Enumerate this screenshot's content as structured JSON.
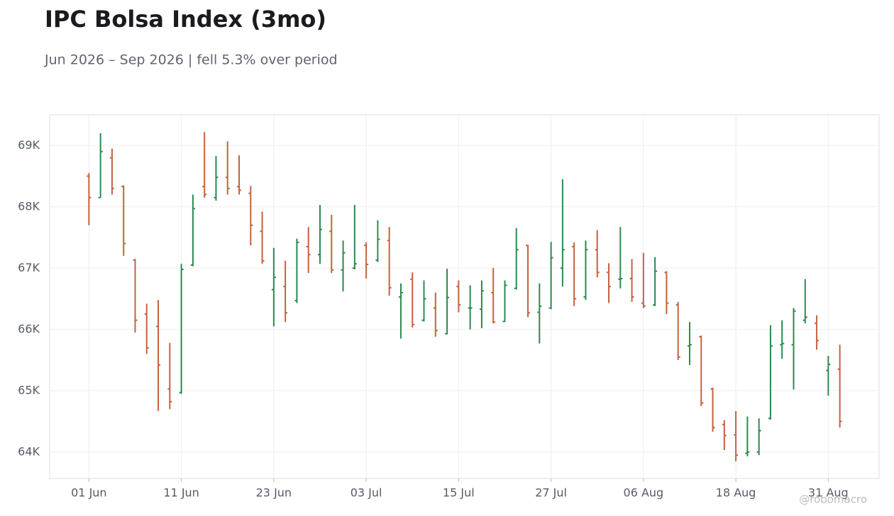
{
  "chart_data": {
    "type": "ohlc",
    "title": "IPC Bolsa Index (3mo)",
    "subtitle": "Jun 2026 – Sep 2026 | fell 5.3% over period",
    "watermark": "@robomacro",
    "categories": [
      "01 Jun",
      null,
      null,
      null,
      null,
      null,
      null,
      null,
      "11 Jun",
      null,
      null,
      null,
      null,
      null,
      null,
      null,
      "23 Jun",
      null,
      null,
      null,
      null,
      null,
      null,
      null,
      "03 Jul",
      null,
      null,
      null,
      null,
      null,
      null,
      null,
      "15 Jul",
      null,
      null,
      null,
      null,
      null,
      null,
      null,
      "27 Jul",
      null,
      null,
      null,
      null,
      null,
      null,
      null,
      "06 Aug",
      null,
      null,
      null,
      null,
      null,
      null,
      null,
      "18 Aug",
      null,
      null,
      null,
      null,
      null,
      null,
      null,
      "31 Aug",
      null
    ],
    "open": [
      68500,
      68150,
      68800,
      68330,
      67130,
      66250,
      66050,
      65030,
      64970,
      67050,
      68330,
      68150,
      68480,
      68330,
      68220,
      67600,
      66650,
      66700,
      66470,
      67350,
      67220,
      67600,
      66970,
      67000,
      67370,
      67130,
      67450,
      66530,
      66820,
      66150,
      66350,
      65930,
      66700,
      66350,
      66330,
      66600,
      66130,
      66670,
      67370,
      66280,
      66350,
      67000,
      67350,
      66530,
      67300,
      66930,
      66820,
      66830,
      66430,
      66400,
      66930,
      66400,
      65730,
      65880,
      65030,
      64450,
      64280,
      63980,
      64000,
      64550,
      65750,
      65750,
      66150,
      66100,
      65330,
      65350
    ],
    "high": [
      68550,
      69200,
      68950,
      68350,
      67150,
      66420,
      66480,
      65780,
      67070,
      68200,
      69220,
      68830,
      69070,
      68840,
      68340,
      67920,
      67330,
      67120,
      67480,
      67670,
      68030,
      67870,
      67450,
      68030,
      67420,
      67780,
      67670,
      66750,
      66930,
      66800,
      66600,
      66990,
      66800,
      66720,
      66800,
      67000,
      66800,
      67650,
      67380,
      66750,
      67430,
      68450,
      67420,
      67450,
      67620,
      67080,
      67670,
      67150,
      67250,
      67180,
      66950,
      66450,
      66120,
      65900,
      65050,
      64520,
      64670,
      64580,
      64550,
      66070,
      66150,
      66350,
      66820,
      66230,
      65570,
      65750
    ],
    "low": [
      67700,
      68150,
      68200,
      67200,
      65950,
      65600,
      64670,
      64700,
      64950,
      67030,
      68150,
      68100,
      68200,
      68200,
      67370,
      67070,
      66050,
      66120,
      66430,
      66920,
      67070,
      66920,
      66620,
      66980,
      66830,
      67100,
      66550,
      65850,
      66030,
      66130,
      65880,
      65920,
      66280,
      66000,
      66020,
      66100,
      66120,
      66650,
      66200,
      65770,
      66330,
      66700,
      66380,
      66480,
      66850,
      66430,
      66670,
      66450,
      66350,
      66380,
      66250,
      65500,
      65420,
      64750,
      64330,
      64030,
      63850,
      63930,
      63950,
      64530,
      65520,
      65020,
      66100,
      65670,
      64920,
      64400
    ],
    "close": [
      68150,
      68900,
      68300,
      67400,
      66150,
      65700,
      65420,
      64820,
      66980,
      67970,
      68200,
      68480,
      68300,
      68270,
      67700,
      67120,
      66850,
      66270,
      67420,
      67220,
      67630,
      66970,
      67250,
      67070,
      67060,
      67470,
      66680,
      66600,
      66080,
      66500,
      65980,
      66520,
      66400,
      66350,
      66630,
      66120,
      66720,
      67300,
      66270,
      66380,
      67170,
      67300,
      66500,
      67300,
      66930,
      66700,
      66830,
      66530,
      66380,
      66950,
      66430,
      65550,
      65750,
      64800,
      64400,
      64270,
      63950,
      64000,
      64350,
      65730,
      65770,
      66300,
      66200,
      65820,
      65430,
      64500
    ],
    "up_color": "#2a8a4f",
    "down_color": "#c4623d",
    "ylim": [
      63570,
      69500
    ],
    "yticks": [
      {
        "value": 64000,
        "label": "64K"
      },
      {
        "value": 65000,
        "label": "65K"
      },
      {
        "value": 66000,
        "label": "66K"
      },
      {
        "value": 67000,
        "label": "67K"
      },
      {
        "value": 68000,
        "label": "68K"
      },
      {
        "value": 69000,
        "label": "69K"
      }
    ],
    "grid": true
  }
}
